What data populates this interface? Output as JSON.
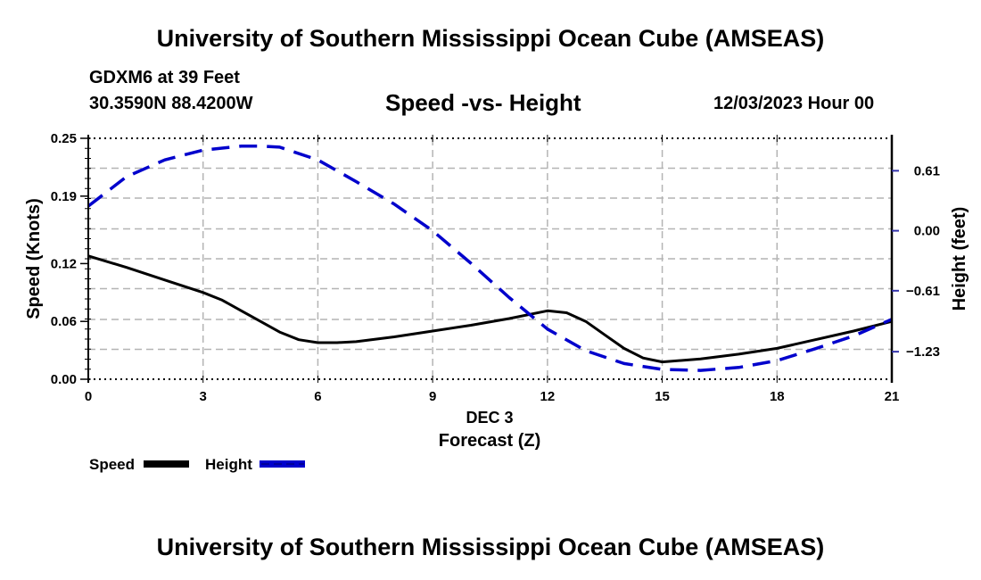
{
  "header": {
    "main_title": "University of Southern Mississippi Ocean Cube (AMSEAS)",
    "station": "GDXM6 at 39 Feet",
    "coords": "30.3590N  88.4200W",
    "chart_title": "Speed -vs- Height",
    "datetime": "12/03/2023 Hour 00"
  },
  "footer": {
    "bottom_title": "University of Southern Mississippi Ocean Cube (AMSEAS)"
  },
  "colors": {
    "speed": "#000000",
    "height": "#0000cc",
    "grid": "#b4b4b4",
    "right_tick": "#3333aa"
  },
  "chart_data": {
    "type": "line",
    "title": "Speed -vs- Height",
    "xlabel": "Forecast (Z)",
    "xsublabel": "DEC 3",
    "ylabel": "Speed (Knots)",
    "y2label": "Height (feet)",
    "xlim": [
      0,
      21
    ],
    "ylim": [
      0,
      0.25
    ],
    "y2lim": [
      -1.51,
      0.94
    ],
    "x_ticks": [
      0,
      3,
      6,
      9,
      12,
      15,
      18,
      21
    ],
    "x_tick_labels": [
      "0",
      "3",
      "6",
      "9",
      "12",
      "15",
      "18",
      "21"
    ],
    "y_ticks": [
      0.0,
      0.06,
      0.12,
      0.19,
      0.25
    ],
    "y_tick_labels": [
      "0.00",
      "0.06",
      "0.12",
      "0.19",
      "0.25"
    ],
    "y_grid": [
      0.031,
      0.062,
      0.094,
      0.125,
      0.156,
      0.188,
      0.219
    ],
    "y2_ticks": [
      0.61,
      0.0,
      -0.61,
      -1.23
    ],
    "y2_tick_labels": [
      "0.61",
      "0.00",
      "−0.61",
      "−1.23"
    ],
    "grid": true,
    "legend": "bottom-left",
    "series": [
      {
        "name": "Speed",
        "axis": "left",
        "style": "solid",
        "x": [
          0,
          1,
          2,
          3,
          3.5,
          4,
          4.5,
          5,
          5.5,
          6,
          6.5,
          7,
          8,
          9,
          10,
          11,
          12,
          12.5,
          13,
          13.5,
          14,
          14.5,
          15,
          16,
          17,
          18,
          19,
          20,
          21
        ],
        "values": [
          0.128,
          0.116,
          0.103,
          0.09,
          0.082,
          0.071,
          0.06,
          0.049,
          0.041,
          0.038,
          0.038,
          0.039,
          0.044,
          0.05,
          0.056,
          0.063,
          0.071,
          0.069,
          0.06,
          0.046,
          0.032,
          0.022,
          0.018,
          0.021,
          0.026,
          0.032,
          0.041,
          0.05,
          0.06
        ]
      },
      {
        "name": "Height",
        "axis": "right",
        "style": "dashed",
        "x": [
          0,
          1,
          2,
          3,
          4,
          4.5,
          5,
          6,
          7,
          8,
          9,
          10,
          11,
          12,
          13,
          14,
          15,
          16,
          17,
          18,
          19,
          20,
          21
        ],
        "values": [
          0.25,
          0.55,
          0.72,
          0.82,
          0.86,
          0.86,
          0.85,
          0.72,
          0.5,
          0.27,
          0.0,
          -0.33,
          -0.68,
          -1.0,
          -1.22,
          -1.35,
          -1.41,
          -1.42,
          -1.39,
          -1.32,
          -1.2,
          -1.07,
          -0.9
        ]
      }
    ]
  }
}
